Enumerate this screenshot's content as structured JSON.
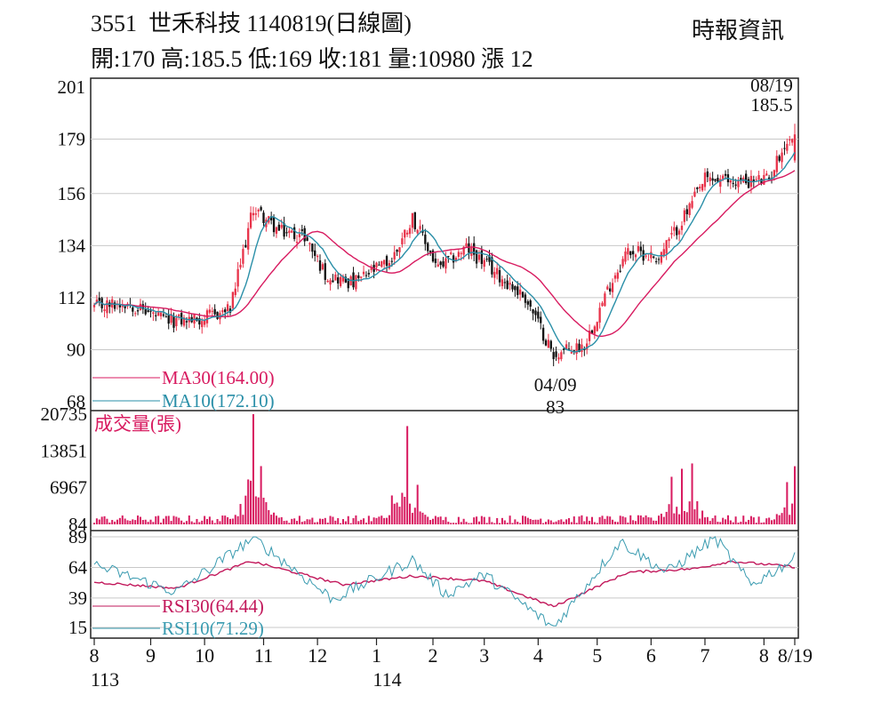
{
  "header": {
    "stock_code": "3551",
    "stock_name": "世禾科技",
    "date_title": "1140819(日線圖)",
    "source": "時報資訊",
    "summary": "開:170 高:185.5 低:169 收:181 量:10980 漲 12"
  },
  "colors": {
    "up": "#e8334a",
    "down": "#111111",
    "ma30": "#d81b60",
    "ma10": "#2a8fa8",
    "volume": "#d81b60",
    "rsi30": "#c2185b",
    "rsi10": "#3a9bb0",
    "grid": "#c8c8c8"
  },
  "chart_data": [
    {
      "type": "candlestick",
      "title": "3551 世禾科技 1140819(日線圖)",
      "ylim": [
        68,
        201
      ],
      "yticks": [
        "201",
        "179",
        "156",
        "134",
        "112",
        "90",
        "68"
      ],
      "ytick_values": [
        201,
        179,
        156,
        134,
        112,
        90,
        68
      ],
      "grid": true,
      "legend": [
        {
          "name": "MA30(164.00)",
          "color": "#d81b60"
        },
        {
          "name": "MA10(172.10)",
          "color": "#2a8fa8"
        }
      ],
      "annotations": [
        {
          "label_top": "08/19",
          "label_bottom": "185.5",
          "date": "08/19",
          "value": 185.5
        },
        {
          "label_top": "04/09",
          "label_bottom": "83",
          "date": "04/09",
          "value": 83
        }
      ],
      "ohlc_keypoints": [
        [
          "2024-08-01",
          108
        ],
        [
          "2024-08-20",
          110
        ],
        [
          "2024-09-10",
          102
        ],
        [
          "2024-09-30",
          103
        ],
        [
          "2024-10-15",
          107
        ],
        [
          "2024-10-28",
          150
        ],
        [
          "2024-11-10",
          140
        ],
        [
          "2024-11-25",
          138
        ],
        [
          "2024-12-05",
          122
        ],
        [
          "2024-12-20",
          118
        ],
        [
          "2025-01-10",
          128
        ],
        [
          "2025-01-22",
          146
        ],
        [
          "2025-02-05",
          124
        ],
        [
          "2025-02-20",
          133
        ],
        [
          "2025-03-10",
          122
        ],
        [
          "2025-03-25",
          112
        ],
        [
          "2025-04-09",
          88
        ],
        [
          "2025-04-25",
          92
        ],
        [
          "2025-05-10",
          120
        ],
        [
          "2025-05-20",
          132
        ],
        [
          "2025-06-05",
          129
        ],
        [
          "2025-06-20",
          148
        ],
        [
          "2025-07-01",
          162
        ],
        [
          "2025-07-20",
          161
        ],
        [
          "2025-08-05",
          162
        ],
        [
          "2025-08-12",
          175
        ],
        [
          "2025-08-19",
          181
        ]
      ],
      "last_candle": {
        "date": "2025-08-19",
        "open": 170,
        "high": 185.5,
        "low": 169,
        "close": 181
      }
    },
    {
      "type": "bar",
      "title": "成交量(張)",
      "ylim": [
        84,
        20735
      ],
      "yticks": [
        "20735",
        "13851",
        "6967",
        "84"
      ],
      "ytick_values": [
        20735,
        13851,
        6967,
        84
      ],
      "spikes": [
        [
          "2024-10-28",
          20735
        ],
        [
          "2024-10-31",
          11000
        ],
        [
          "2024-10-24",
          8500
        ],
        [
          "2025-01-20",
          18500
        ],
        [
          "2025-01-24",
          7500
        ],
        [
          "2025-01-10",
          5500
        ],
        [
          "2025-06-18",
          10500
        ],
        [
          "2025-06-24",
          11500
        ],
        [
          "2025-06-12",
          9000
        ],
        [
          "2025-08-14",
          8000
        ],
        [
          "2025-08-19",
          10980
        ]
      ],
      "last_value": 10980
    },
    {
      "type": "line",
      "ylim": [
        15,
        89
      ],
      "yticks": [
        "89",
        "64",
        "39",
        "15"
      ],
      "ytick_values": [
        89,
        64,
        39,
        15
      ],
      "legend": [
        {
          "name": "RSI30(64.44)",
          "color": "#c2185b"
        },
        {
          "name": "RSI10(71.29)",
          "color": "#3a9bb0"
        }
      ],
      "series": [
        {
          "name": "RSI30(64.44)",
          "keypoints": [
            [
              "2024-08-01",
              52
            ],
            [
              "2024-09-15",
              47
            ],
            [
              "2024-10-25",
              69
            ],
            [
              "2024-12-15",
              50
            ],
            [
              "2025-01-22",
              57
            ],
            [
              "2025-03-01",
              53
            ],
            [
              "2025-04-09",
              32
            ],
            [
              "2025-05-20",
              60
            ],
            [
              "2025-06-25",
              63
            ],
            [
              "2025-07-15",
              69
            ],
            [
              "2025-08-19",
              64.44
            ]
          ]
        },
        {
          "name": "RSI10(71.29)",
          "keypoints": [
            [
              "2024-08-01",
              66
            ],
            [
              "2024-09-15",
              44
            ],
            [
              "2024-10-28",
              88
            ],
            [
              "2024-12-10",
              38
            ],
            [
              "2025-01-22",
              70
            ],
            [
              "2025-02-10",
              42
            ],
            [
              "2025-03-01",
              58
            ],
            [
              "2025-04-09",
              15
            ],
            [
              "2025-05-15",
              85
            ],
            [
              "2025-06-10",
              60
            ],
            [
              "2025-07-05",
              88
            ],
            [
              "2025-07-25",
              50
            ],
            [
              "2025-08-19",
              71.29
            ]
          ]
        }
      ]
    }
  ],
  "x_axis": {
    "month_ticks": [
      {
        "label": "8",
        "date": "2024-08-01"
      },
      {
        "label": "9",
        "date": "2024-09-02"
      },
      {
        "label": "10",
        "date": "2024-10-01"
      },
      {
        "label": "11",
        "date": "2024-11-01"
      },
      {
        "label": "12",
        "date": "2024-12-02"
      },
      {
        "label": "1",
        "date": "2025-01-02"
      },
      {
        "label": "2",
        "date": "2025-02-03"
      },
      {
        "label": "3",
        "date": "2025-03-03"
      },
      {
        "label": "4",
        "date": "2025-04-01"
      },
      {
        "label": "5",
        "date": "2025-05-02"
      },
      {
        "label": "6",
        "date": "2025-06-02"
      },
      {
        "label": "7",
        "date": "2025-07-01"
      },
      {
        "label": "8",
        "date": "2025-08-01"
      },
      {
        "label": "8/19",
        "date": "2025-08-19"
      }
    ],
    "year_labels": [
      {
        "label": "113",
        "date": "2024-08-01"
      },
      {
        "label": "114",
        "date": "2025-01-02"
      }
    ]
  }
}
